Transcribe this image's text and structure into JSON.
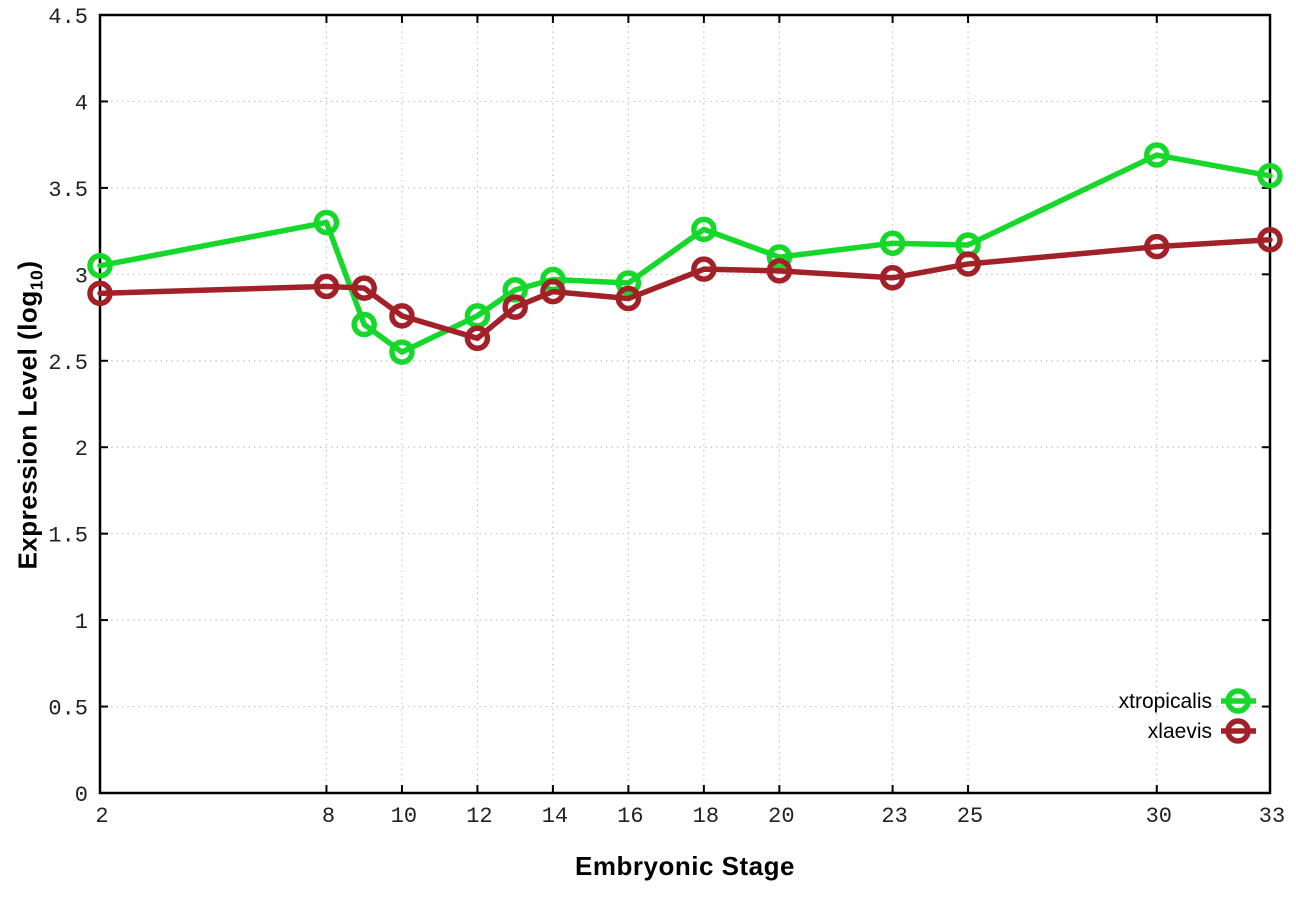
{
  "chart_data": {
    "type": "line",
    "title": "",
    "xlabel": "Embryonic Stage",
    "ylabel": {
      "main": "Expression Level (log",
      "sub": "10",
      "end": ")"
    },
    "x": [
      2,
      8,
      9,
      10,
      12,
      13,
      14,
      16,
      18,
      20,
      23,
      25,
      30,
      33
    ],
    "series": [
      {
        "name": "xtropicalis",
        "color": "#15d82b",
        "values": [
          3.05,
          3.3,
          2.71,
          2.55,
          2.76,
          2.91,
          2.97,
          2.95,
          3.26,
          3.1,
          3.18,
          3.17,
          3.69,
          3.57
        ]
      },
      {
        "name": "xlaevis",
        "color": "#a22028",
        "values": [
          2.89,
          2.93,
          2.92,
          2.76,
          2.63,
          2.81,
          2.9,
          2.86,
          3.03,
          3.02,
          2.98,
          3.06,
          3.16,
          3.2
        ]
      }
    ],
    "xticks": [
      2,
      8,
      10,
      12,
      14,
      16,
      18,
      20,
      23,
      25,
      30,
      33
    ],
    "xtick_labels": [
      "2",
      "8",
      "10",
      "12",
      "14",
      "16",
      "18",
      "20",
      "23",
      "25",
      "30",
      "33"
    ],
    "yticks": [
      0,
      0.5,
      1,
      1.5,
      2,
      2.5,
      3,
      3.5,
      4,
      4.5
    ],
    "ytick_labels": [
      "0",
      "0.5",
      "1",
      "1.5",
      "2",
      "2.5",
      "3",
      "3.5",
      "4",
      "4.5"
    ],
    "xlim": [
      2,
      33
    ],
    "ylim": [
      0,
      4.5
    ],
    "grid": true,
    "legend_position": "bottom-right",
    "colors": {
      "border": "#000000",
      "grid": "#c4c4c4",
      "background": "#ffffff"
    }
  }
}
